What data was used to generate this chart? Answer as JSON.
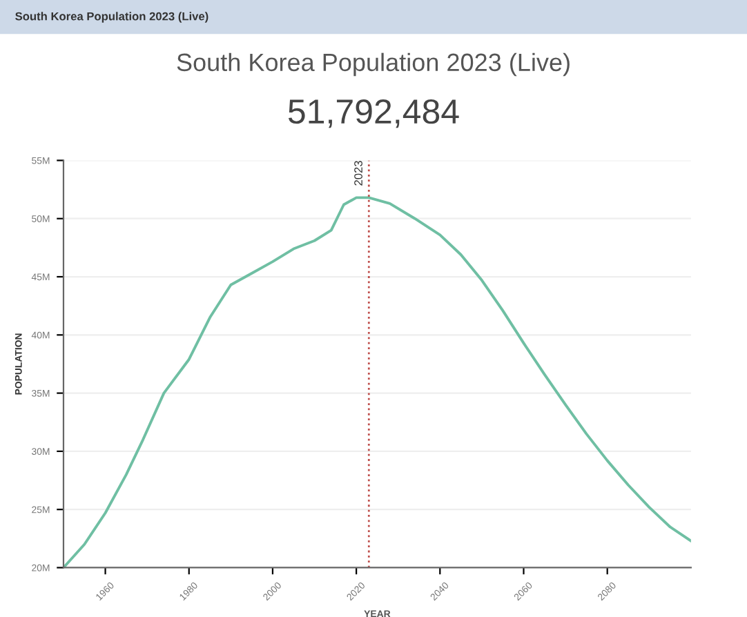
{
  "chart_data": {
    "type": "line",
    "title": "South Korea Population 2023 (Live)",
    "subtitle": "51,792,484",
    "annotations": [
      "South Korea Population 2023 (Live)"
    ],
    "xlabel": "YEAR",
    "ylabel": "POPULATION",
    "x": [
      1950,
      1955,
      1960,
      1965,
      1969,
      1974,
      1980,
      1985,
      1990,
      1995,
      2000,
      2005,
      2010,
      2014,
      2017,
      2020,
      2023,
      2028,
      2034,
      2040,
      2045,
      2050,
      2055,
      2060,
      2065,
      2070,
      2075,
      2080,
      2085,
      2090,
      2095,
      2100
    ],
    "series": [
      {
        "color": "#6fbfa3",
        "values": [
          20,
          22,
          24.7,
          28,
          31,
          35,
          37.9,
          41.5,
          44.3,
          45.3,
          46.3,
          47.4,
          48.1,
          49,
          51.2,
          51.8,
          51.8,
          51.3,
          50,
          48.6,
          46.9,
          44.7,
          42.1,
          39.3,
          36.6,
          34,
          31.5,
          29.2,
          27.1,
          25.2,
          23.5,
          22.3
        ]
      }
    ],
    "xlim": [
      1950,
      2100
    ],
    "xticks": [
      1960,
      1980,
      2000,
      2020,
      2040,
      2060,
      2080
    ],
    "ylim": [
      20,
      55
    ],
    "yticks": [
      {
        "value": 20,
        "label": "20M"
      },
      {
        "value": 25,
        "label": "25M"
      },
      {
        "value": 30,
        "label": "30M"
      },
      {
        "value": 35,
        "label": "35M"
      },
      {
        "value": 40,
        "label": "40M"
      },
      {
        "value": 45,
        "label": "45M"
      },
      {
        "value": 50,
        "label": "50M"
      },
      {
        "value": 55,
        "label": "55M"
      }
    ],
    "grid": "y",
    "marker": "none",
    "line_style": "solid",
    "ref_lines": [
      {
        "axis": "x",
        "value": 2023,
        "label": "2023",
        "color": "#c0504d",
        "line_style": "dotted"
      }
    ]
  }
}
